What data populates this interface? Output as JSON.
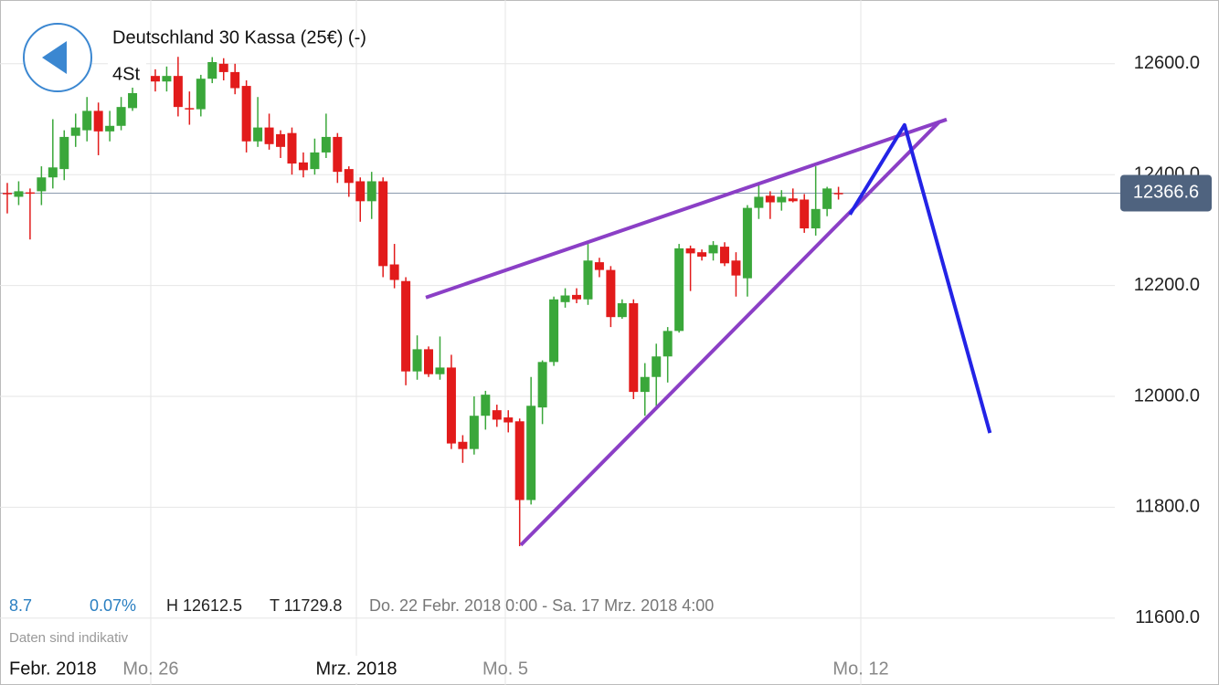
{
  "header": {
    "title": "Deutschland 30 Kassa (25€) (-)",
    "interval": "4St"
  },
  "info": {
    "change": "8.7",
    "change_pct": "0.07%",
    "high": "H 12612.5",
    "low": "T 11729.8",
    "range": "Do. 22 Febr. 2018 0:00 - Sa. 17 Mrz. 2018 4:00",
    "note": "Daten sind indikativ"
  },
  "chart_data": {
    "type": "candlestick",
    "period_label": "Febr. 2018",
    "x": [
      0,
      1,
      2,
      3,
      4,
      5,
      6,
      7,
      8,
      9,
      10,
      11,
      13,
      14,
      15,
      16,
      17,
      18,
      19,
      20,
      21,
      22,
      23,
      24,
      25,
      26,
      27,
      28,
      29,
      30,
      31,
      32,
      33,
      34,
      35,
      36,
      37,
      38,
      39,
      40,
      41,
      42,
      43,
      44,
      45,
      46,
      47,
      48,
      49,
      50,
      51,
      52,
      53,
      54,
      55,
      56,
      57,
      58,
      59,
      60,
      61,
      62,
      63,
      64,
      65,
      66,
      67,
      68,
      69,
      70,
      71,
      72,
      73
    ],
    "open": [
      12367,
      12360,
      12368,
      12370,
      12395,
      12410,
      12470,
      12480,
      12515,
      12478,
      12488,
      12520,
      12578,
      12568,
      12578,
      12520,
      12518,
      12573,
      12600,
      12585,
      12560,
      12460,
      12485,
      12473,
      12475,
      12422,
      12410,
      12440,
      12468,
      12410,
      12388,
      12352,
      12388,
      12238,
      12208,
      12045,
      12085,
      12040,
      12052,
      11918,
      11905,
      11965,
      11975,
      11962,
      11955,
      11813,
      11980,
      12062,
      12170,
      12183,
      12175,
      12242,
      12228,
      12143,
      12168,
      12008,
      12035,
      12072,
      12118,
      12267,
      12260,
      12258,
      12270,
      12245,
      12213,
      12340,
      12362,
      12350,
      12357,
      12355,
      12303,
      12338,
      12367
    ],
    "high": [
      12385,
      12388,
      12375,
      12415,
      12500,
      12480,
      12510,
      12540,
      12530,
      12515,
      12540,
      12560,
      12590,
      12595,
      12612.5,
      12550,
      12580,
      12612,
      12610,
      12600,
      12570,
      12540,
      12510,
      12480,
      12485,
      12440,
      12465,
      12510,
      12475,
      12415,
      12395,
      12405,
      12395,
      12275,
      12215,
      12110,
      12090,
      12108,
      12075,
      11930,
      12000,
      12010,
      11985,
      11975,
      11960,
      12035,
      12065,
      12180,
      12195,
      12195,
      12275,
      12250,
      12235,
      12175,
      12175,
      12060,
      12095,
      12125,
      12275,
      12272,
      12265,
      12280,
      12278,
      12260,
      12345,
      12385,
      12370,
      12372,
      12375,
      12365,
      12415,
      12378,
      12378
    ],
    "low": [
      12330,
      12345,
      12283,
      12345,
      12375,
      12390,
      12450,
      12460,
      12435,
      12460,
      12480,
      12515,
      12550,
      12550,
      12505,
      12490,
      12505,
      12565,
      12570,
      12545,
      12440,
      12450,
      12445,
      12430,
      12400,
      12395,
      12400,
      12430,
      12385,
      12360,
      12315,
      12320,
      12215,
      12195,
      12020,
      12030,
      12035,
      12030,
      11905,
      11880,
      11895,
      11940,
      11945,
      11935,
      11729.8,
      11805,
      11950,
      12055,
      12160,
      12168,
      12165,
      12215,
      12125,
      12140,
      11995,
      11965,
      11980,
      12025,
      12115,
      12190,
      12245,
      12245,
      12235,
      12180,
      12180,
      12320,
      12320,
      12335,
      12350,
      12295,
      12290,
      12325,
      12355
    ],
    "close": [
      12365,
      12370,
      12367,
      12395,
      12413,
      12468,
      12485,
      12515,
      12478,
      12488,
      12522,
      12547,
      12568,
      12578,
      12522,
      12518,
      12573,
      12603,
      12585,
      12556,
      12460,
      12485,
      12455,
      12450,
      12420,
      12408,
      12440,
      12468,
      12405,
      12385,
      12352,
      12388,
      12235,
      12210,
      12045,
      12085,
      12040,
      12052,
      11915,
      11905,
      11965,
      12003,
      11958,
      11953,
      11813,
      11983,
      12062,
      12175,
      12182,
      12175,
      12245,
      12228,
      12143,
      12168,
      12008,
      12035,
      12072,
      12118,
      12267,
      12258,
      12252,
      12273,
      12240,
      12218,
      12340,
      12360,
      12350,
      12360,
      12352,
      12303,
      12338,
      12375,
      12366.6
    ],
    "up_color": "#3aa73a",
    "down_color": "#e21b1b",
    "last": 12366.6,
    "ylim": [
      11537,
      12715
    ],
    "yticks": [
      {
        "value": 11600,
        "label": "11600.0"
      },
      {
        "value": 11800,
        "label": "11800.0"
      },
      {
        "value": 12000,
        "label": "12000.0"
      },
      {
        "value": 12200,
        "label": "12200.0"
      },
      {
        "value": 12400,
        "label": "12400.0"
      },
      {
        "value": 12600,
        "label": "12600.0"
      }
    ],
    "xlim": [
      -0.64,
      97.27
    ],
    "xticks": [
      {
        "value": 12.6,
        "label": "Mo. 26"
      },
      {
        "value": 30.66,
        "label": "Mrz. 2018"
      },
      {
        "value": 43.74,
        "label": "Mo. 5"
      },
      {
        "value": 74.96,
        "label": "Mo. 12"
      }
    ],
    "grid": true,
    "drawings": [
      {
        "color": "#8b3fc6",
        "points": [
          [
            36.76,
            12178.3
          ],
          [
            82.5,
            12499.5
          ]
        ]
      },
      {
        "color": "#8b3fc6",
        "points": [
          [
            45.1,
            11731.8
          ],
          [
            81.9,
            12496.2
          ]
        ]
      },
      {
        "color": "#2323e6",
        "points": [
          [
            74.0,
            12328
          ],
          [
            78.8,
            12489.6
          ],
          [
            86.3,
            11934
          ]
        ]
      }
    ]
  }
}
